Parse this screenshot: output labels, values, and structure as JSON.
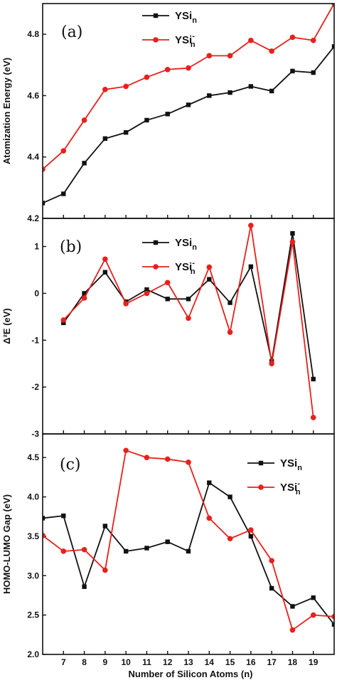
{
  "chart_data": {
    "xlabel": "Number of Silicon Atoms (n)",
    "xlim": [
      6,
      20
    ],
    "xticks": [
      7,
      8,
      9,
      10,
      11,
      12,
      13,
      14,
      15,
      16,
      17,
      18,
      19
    ],
    "legend_entries": [
      {
        "base": "YSi",
        "sub": "n",
        "sup": "",
        "color": "#111111",
        "marker": "square"
      },
      {
        "base": "YSi",
        "sub": "n",
        "sup": "-",
        "color": "#e8201c",
        "marker": "circle"
      }
    ],
    "panels": [
      {
        "type": "line",
        "label": "(a)",
        "ylabel": "Atomization Energy (eV)",
        "ylim": [
          4.2,
          4.9
        ],
        "yticks": [
          4.2,
          4.4,
          4.6,
          4.8
        ],
        "ytick_labels": [
          "4.2",
          "4.4",
          "4.6",
          "4.8"
        ],
        "legend_position": "top-center",
        "series": [
          {
            "color": "#111111",
            "marker": "square",
            "points": [
              [
                6,
                4.25
              ],
              [
                7,
                4.28
              ],
              [
                8,
                4.38
              ],
              [
                9,
                4.46
              ],
              [
                10,
                4.48
              ],
              [
                11,
                4.52
              ],
              [
                12,
                4.54
              ],
              [
                13,
                4.57
              ],
              [
                14,
                4.6
              ],
              [
                15,
                4.61
              ],
              [
                16,
                4.63
              ],
              [
                17,
                4.615
              ],
              [
                18,
                4.68
              ],
              [
                19,
                4.675
              ],
              [
                20,
                4.76
              ]
            ]
          },
          {
            "color": "#e8201c",
            "marker": "circle",
            "points": [
              [
                6,
                4.36
              ],
              [
                7,
                4.42
              ],
              [
                8,
                4.52
              ],
              [
                9,
                4.62
              ],
              [
                10,
                4.63
              ],
              [
                11,
                4.66
              ],
              [
                12,
                4.685
              ],
              [
                13,
                4.69
              ],
              [
                14,
                4.73
              ],
              [
                15,
                4.73
              ],
              [
                16,
                4.78
              ],
              [
                17,
                4.745
              ],
              [
                18,
                4.79
              ],
              [
                19,
                4.78
              ],
              [
                20,
                4.9
              ]
            ]
          }
        ]
      },
      {
        "type": "line",
        "label": "(b)",
        "ylabel": "Δ²E (eV)",
        "ylim": [
          -3,
          1.6
        ],
        "yticks": [
          1,
          0,
          -1,
          -2,
          -3
        ],
        "ytick_labels": [
          "1",
          "0",
          "-1",
          "-2",
          "-3"
        ],
        "legend_position": "top-center",
        "series": [
          {
            "color": "#111111",
            "marker": "square",
            "points": [
              [
                7,
                -0.63
              ],
              [
                8,
                0.0
              ],
              [
                9,
                0.45
              ],
              [
                10,
                -0.18
              ],
              [
                11,
                0.08
              ],
              [
                12,
                -0.12
              ],
              [
                13,
                -0.12
              ],
              [
                14,
                0.3
              ],
              [
                15,
                -0.2
              ],
              [
                16,
                0.57
              ],
              [
                17,
                -1.45
              ],
              [
                18,
                1.28
              ],
              [
                19,
                -1.83
              ]
            ]
          },
          {
            "color": "#e8201c",
            "marker": "circle",
            "points": [
              [
                7,
                -0.57
              ],
              [
                8,
                -0.1
              ],
              [
                9,
                0.73
              ],
              [
                10,
                -0.22
              ],
              [
                11,
                0.0
              ],
              [
                12,
                0.23
              ],
              [
                13,
                -0.53
              ],
              [
                14,
                0.56
              ],
              [
                15,
                -0.83
              ],
              [
                16,
                1.45
              ],
              [
                17,
                -1.5
              ],
              [
                18,
                1.1
              ],
              [
                19,
                -2.65
              ]
            ]
          }
        ]
      },
      {
        "type": "line",
        "label": "(c)",
        "ylabel": "HOMO-LUMO Gap (eV)",
        "ylim": [
          2.0,
          4.8
        ],
        "yticks": [
          2.0,
          2.5,
          3.0,
          3.5,
          4.0,
          4.5
        ],
        "ytick_labels": [
          "2.0",
          "2.5",
          "3.0",
          "3.5",
          "4.0",
          "4.5"
        ],
        "legend_position": "top-right",
        "series": [
          {
            "color": "#111111",
            "marker": "square",
            "points": [
              [
                6,
                3.73
              ],
              [
                7,
                3.76
              ],
              [
                8,
                2.86
              ],
              [
                9,
                3.63
              ],
              [
                10,
                3.31
              ],
              [
                11,
                3.35
              ],
              [
                12,
                3.43
              ],
              [
                13,
                3.31
              ],
              [
                14,
                4.18
              ],
              [
                15,
                4.0
              ],
              [
                16,
                3.5
              ],
              [
                17,
                2.84
              ],
              [
                18,
                2.61
              ],
              [
                19,
                2.72
              ],
              [
                20,
                2.38
              ]
            ]
          },
          {
            "color": "#e8201c",
            "marker": "circle",
            "points": [
              [
                6,
                3.51
              ],
              [
                7,
                3.31
              ],
              [
                8,
                3.33
              ],
              [
                9,
                3.07
              ],
              [
                10,
                4.59
              ],
              [
                11,
                4.5
              ],
              [
                12,
                4.48
              ],
              [
                13,
                4.44
              ],
              [
                14,
                3.73
              ],
              [
                15,
                3.47
              ],
              [
                16,
                3.58
              ],
              [
                17,
                3.19
              ],
              [
                18,
                2.31
              ],
              [
                19,
                2.5
              ],
              [
                20,
                2.48
              ]
            ]
          }
        ]
      }
    ]
  }
}
